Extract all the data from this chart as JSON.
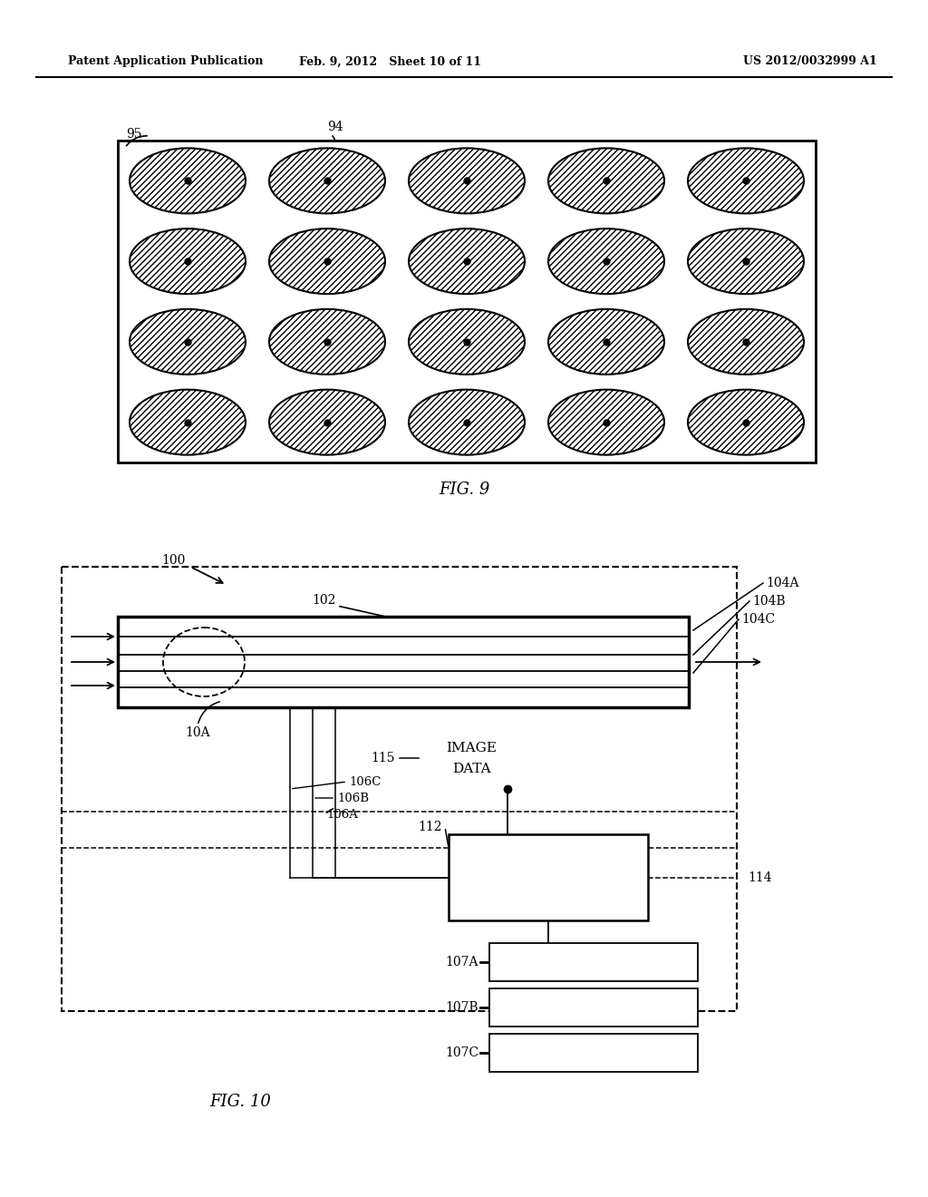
{
  "header_left": "Patent Application Publication",
  "header_mid": "Feb. 9, 2012   Sheet 10 of 11",
  "header_right": "US 2012/0032999 A1",
  "fig9_label": "FIG. 9",
  "fig10_label": "FIG. 10",
  "bg_color": "#ffffff"
}
